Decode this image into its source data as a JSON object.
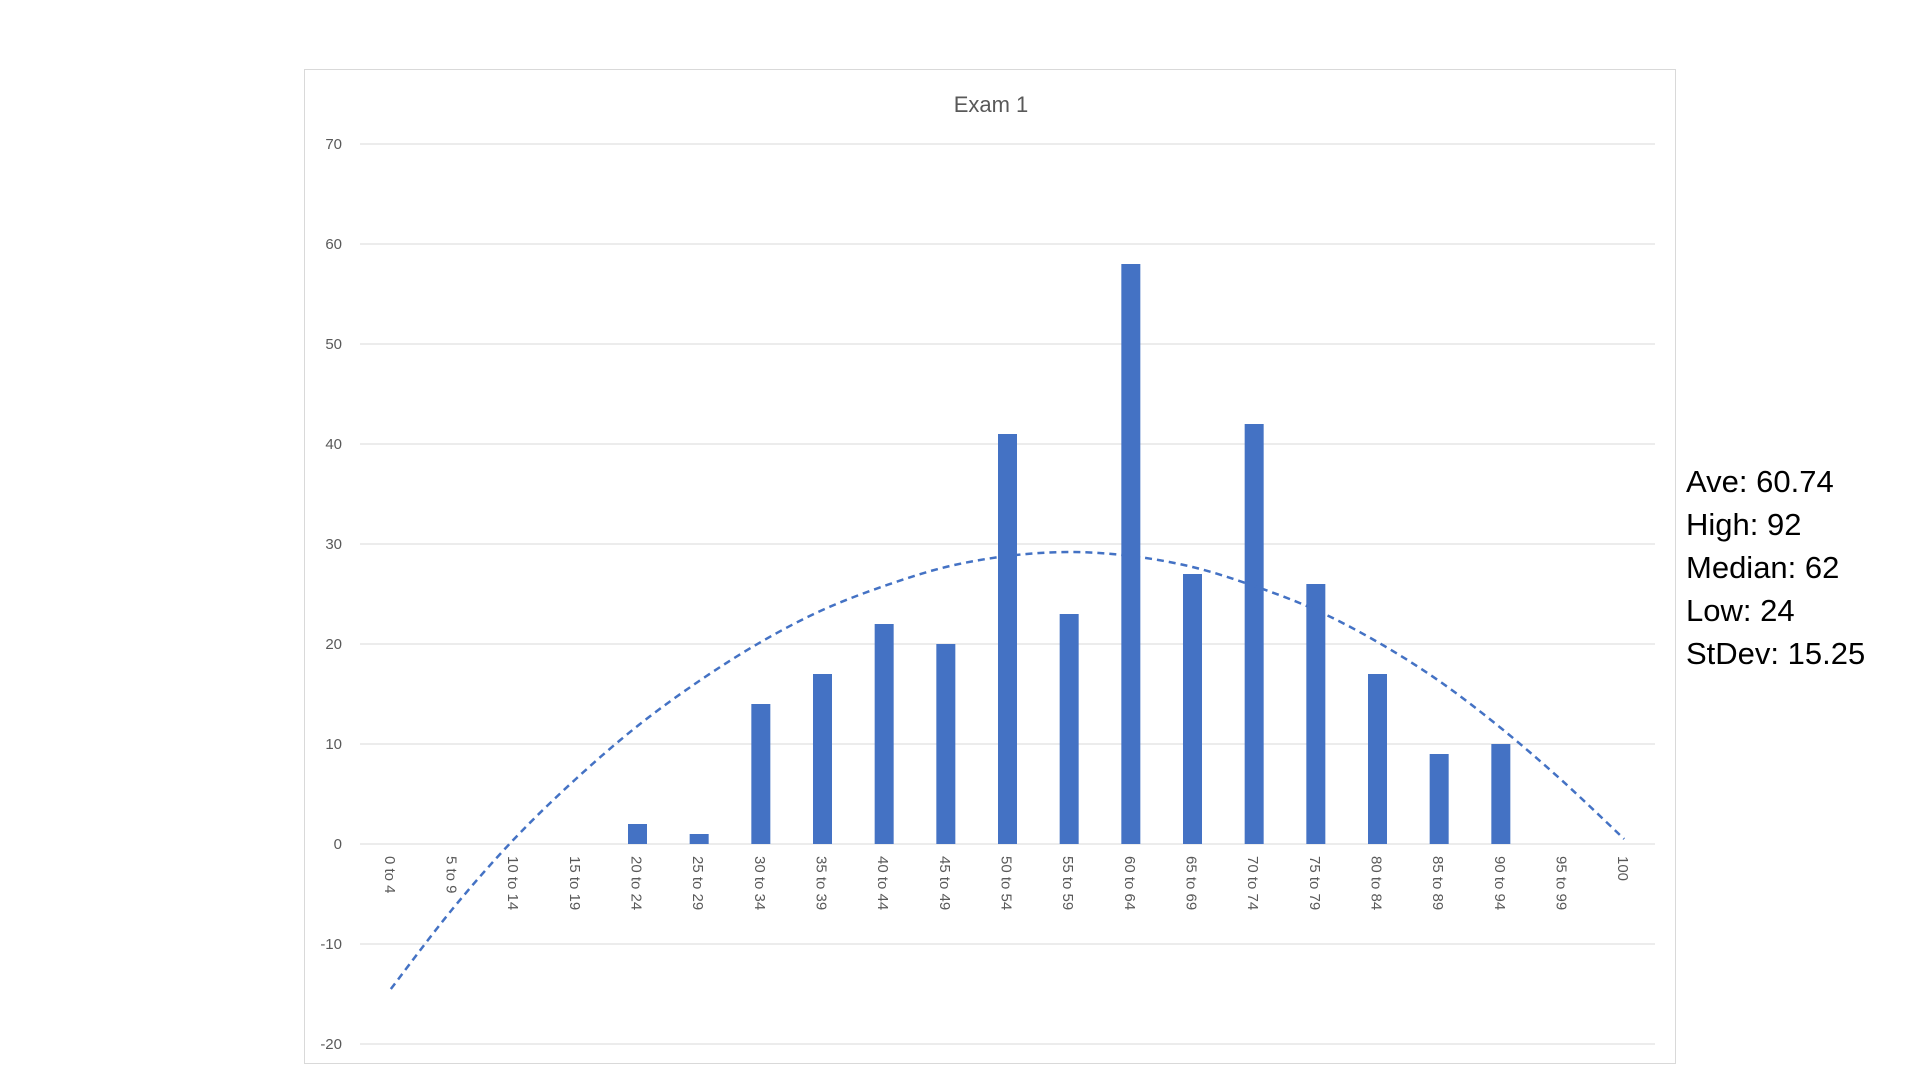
{
  "chart_data": {
    "type": "bar",
    "title": "Exam 1",
    "categories": [
      "0 to 4",
      "5 to 9",
      "10 to 14",
      "15 to 19",
      "20 to 24",
      "25 to 29",
      "30 to 34",
      "35 to 39",
      "40 to 44",
      "45 to 49",
      "50 to 54",
      "55 to 59",
      "60 to 64",
      "65 to 69",
      "70 to 74",
      "75 to 79",
      "80 to 84",
      "85 to 89",
      "90 to 94",
      "95 to 99",
      "100"
    ],
    "values": [
      0,
      0,
      0,
      0,
      2,
      1,
      14,
      17,
      22,
      20,
      41,
      23,
      58,
      27,
      42,
      26,
      17,
      9,
      10,
      0,
      0
    ],
    "ylim": [
      -20,
      70
    ],
    "yticks": [
      -20,
      -10,
      0,
      10,
      20,
      30,
      40,
      50,
      60,
      70
    ],
    "grid": true,
    "legend": "none",
    "trendline": {
      "type": "polynomial",
      "style": "dashed",
      "values": [
        -14.5,
        -6.5,
        0.5,
        6.5,
        11.8,
        16.3,
        20.2,
        23.4,
        25.8,
        27.7,
        28.8,
        29.2,
        28.8,
        27.7,
        25.8,
        23.4,
        20.2,
        16.3,
        11.6,
        6.3,
        0.5
      ]
    },
    "bar_color": "#4472c4"
  },
  "stats": [
    {
      "label": "Ave:",
      "value": "60.74"
    },
    {
      "label": "High:",
      "value": "92"
    },
    {
      "label": "Median:",
      "value": "62"
    },
    {
      "label": "Low:",
      "value": "24"
    },
    {
      "label": "StDev:",
      "value": "15.25"
    }
  ]
}
